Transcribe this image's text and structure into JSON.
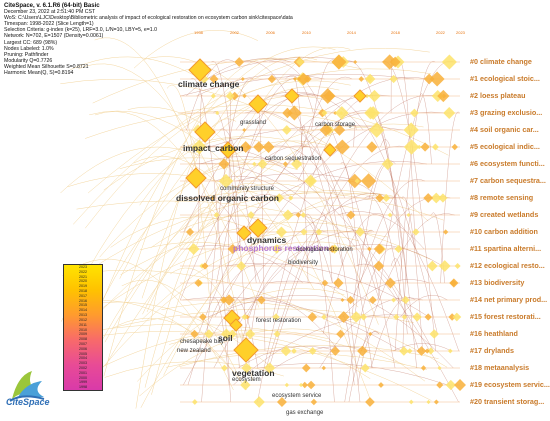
{
  "info_lines": [
    "CiteSpace, v. 6.1.R6 (64-bit) Basic",
    "December 23, 2022 at 2:51:40 PM CST",
    "WoS: C:\\Users\\LJC\\Desktop\\Bibliometric analysis of impact of ecological restoration on ecosystem carbon sink\\citespace\\data",
    "Timespan: 1998-2022 (Slice Length=1)",
    "Selection Criteria: g-index (k=25), LRF=3.0, L/N=10, LBY=5, e=1.0",
    "Network: N=702, E=1507 (Density=0.0061)",
    "Largest CC: 689 (98%)",
    "Nodes Labeled: 1.0%",
    "Pruning: Pathfinder",
    "Modularity Q=0.7726",
    "Weighted Mean Silhouette S=0.8721",
    "Harmonic Mean(Q, S)=0.8194"
  ],
  "timeline_years": [
    "1998",
    "2002",
    "2006",
    "2010",
    "2014",
    "2018",
    "2022",
    "2023"
  ],
  "clusters": [
    "#0 climate change",
    "#1 ecological stoic...",
    "#2 loess plateau",
    "#3 grazing exclusio...",
    "#4 soil organic car...",
    "#5 ecological indic...",
    "#6 ecosystem functi...",
    "#7 carbon sequestra...",
    "#8 remote sensing",
    "#9 created wetlands",
    "#10 carbon addition",
    "#11 spartina alterni...",
    "#12 ecological resto...",
    "#13 biodiversity",
    "#14 net primary prod...",
    "#15 forest restorati...",
    "#16 heathland",
    "#17 drylands",
    "#18 metaanalysis",
    "#19 ecosystem servic...",
    "#20 transient storag..."
  ],
  "node_labels": {
    "climate_change": "climate change",
    "grassland": "grassland",
    "carbon_storage": "carbon storage",
    "impact_carbon": "impact_carbon",
    "community_structure": "community structure",
    "dissolved_organic": "dissolved organic carbon",
    "dynamics": "dynamics",
    "phosphorus_restoration": "phosphorus restoration",
    "ecological_restoration": "ecological restoration",
    "biodiversity": "biodiversity",
    "forest_restoration": "forest restoration",
    "soil": "soil",
    "new_zealand": "new zealand",
    "chesapeake_bay": "chesapeake bay",
    "vegetation": "vegetation",
    "ecosystem": "ecosystem",
    "ecosystem_service": "ecosystem service",
    "gas_exchange": "gas exchange",
    "carbon_sequestration": "carbon sequestration"
  },
  "legend_years": [
    "2023",
    "2022",
    "2021",
    "2020",
    "2019",
    "2018",
    "2017",
    "2016",
    "2015",
    "2014",
    "2013",
    "2012",
    "2011",
    "2010",
    "2009",
    "2008",
    "2007",
    "2006",
    "2005",
    "2004",
    "2003",
    "2002",
    "2001",
    "2000",
    "1999",
    "1998"
  ],
  "logo_text": "CiteSpace",
  "colors": {
    "cluster_label": "#c97b2b",
    "year": "#e8730c",
    "link": "#b0533c"
  }
}
